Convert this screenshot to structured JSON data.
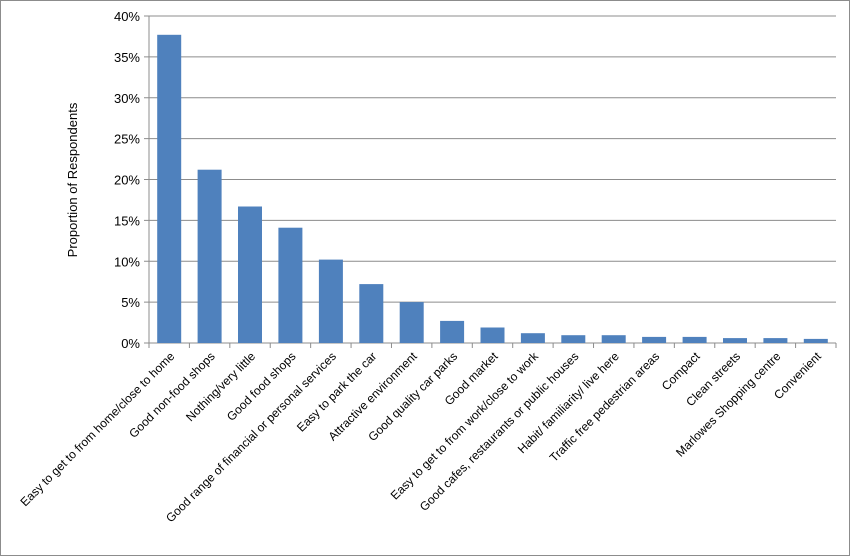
{
  "chart_data": {
    "type": "bar",
    "title": "",
    "xlabel": "",
    "ylabel": "Proportion of Respondents",
    "ylim": [
      0,
      40
    ],
    "yticks": [
      "0%",
      "5%",
      "10%",
      "15%",
      "20%",
      "25%",
      "30%",
      "35%",
      "40%"
    ],
    "grid": true,
    "legend": "none",
    "bar_color": "#4f81bd",
    "categories": [
      "Easy to get to from home/close to home",
      "Good non-food shops",
      "Nothing/very little",
      "Good food shops",
      "Good range of financial or personal services",
      "Easy to park the car",
      "Attractive environment",
      "Good quality car parks",
      "Good market",
      "Easy to get to from work/close to work",
      "Good cafes, restaurants or public houses",
      "Habit/ familiarity/ live here",
      "Traffic free pedestrian areas",
      "Compact",
      "Clean streets",
      "Marlowes Shopping centre",
      "Convenient"
    ],
    "values": [
      37.7,
      21.2,
      16.7,
      14.1,
      10.2,
      7.2,
      5.0,
      2.7,
      1.9,
      1.2,
      0.95,
      0.95,
      0.75,
      0.75,
      0.6,
      0.6,
      0.5
    ]
  }
}
